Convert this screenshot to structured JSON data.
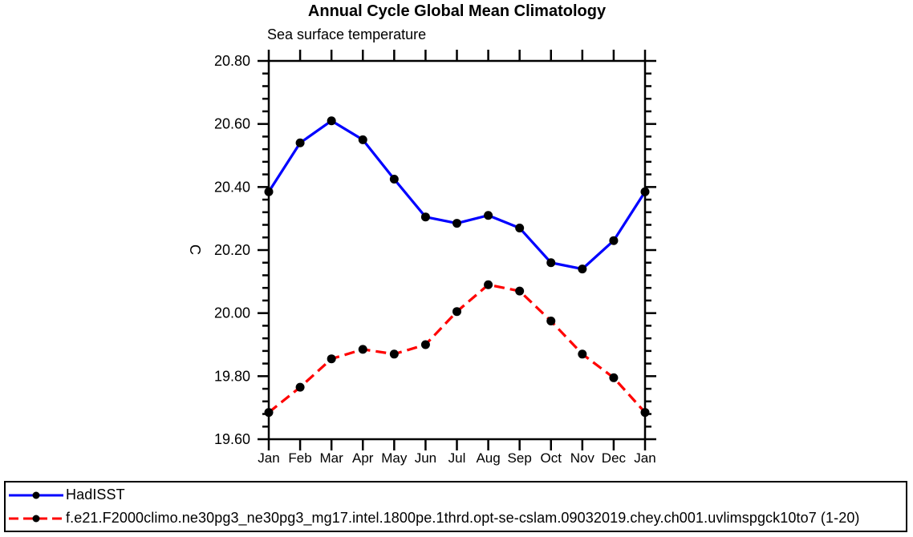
{
  "chart_data": {
    "type": "line",
    "title": "Annual Cycle Global Mean Climatology",
    "subtitle": "Sea surface temperature",
    "ylabel": "C",
    "xlabel": "",
    "categories": [
      "Jan",
      "Feb",
      "Mar",
      "Apr",
      "May",
      "Jun",
      "Jul",
      "Aug",
      "Sep",
      "Oct",
      "Nov",
      "Dec",
      "Jan"
    ],
    "ylim": [
      19.6,
      20.8
    ],
    "ytick_major_interval": 0.2,
    "ytick_minor_interval": 0.04,
    "ytick_labels": [
      "19.60",
      "19.80",
      "20.00",
      "20.20",
      "20.40",
      "20.60",
      "20.80"
    ],
    "grid": false,
    "axis_color": "#000000",
    "marker_color": "#000000",
    "legend_position": "bottom-box",
    "series": [
      {
        "name": "HadISST",
        "color": "#0000ff",
        "line_style": "solid",
        "marker": "filled-circle",
        "values": [
          20.385,
          20.54,
          20.61,
          20.55,
          20.425,
          20.305,
          20.285,
          20.31,
          20.27,
          20.16,
          20.14,
          20.23,
          20.385
        ]
      },
      {
        "name": "f.e21.F2000climo.ne30pg3_ne30pg3_mg17.intel.1800pe.1thrd.opt-se-cslam.09032019.chey.ch001.uvlimspgck10to7 (1-20)",
        "color": "#ff0000",
        "line_style": "dashed",
        "marker": "filled-circle",
        "values": [
          19.685,
          19.765,
          19.855,
          19.885,
          19.87,
          19.9,
          20.005,
          20.09,
          20.07,
          19.975,
          19.87,
          19.795,
          19.685
        ]
      }
    ]
  }
}
